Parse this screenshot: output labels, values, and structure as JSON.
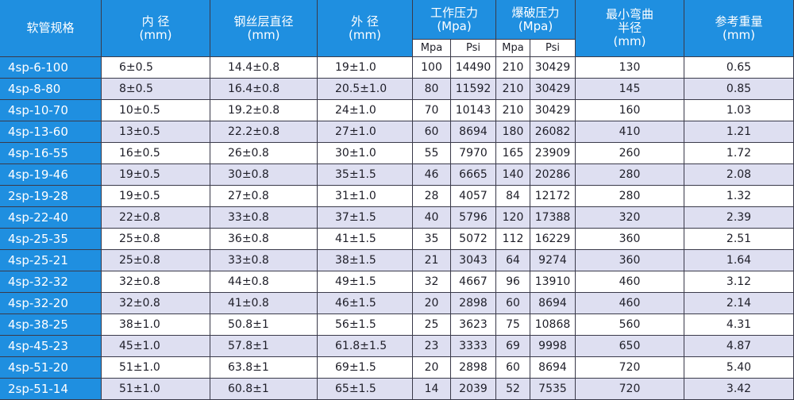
{
  "table": {
    "headers": [
      [
        "软管规格"
      ],
      [
        "内 径",
        "(mm)"
      ],
      [
        "钢丝层直径",
        "(mm)"
      ],
      [
        "外 径",
        "(mm)"
      ],
      [
        "工作压力",
        "(Mpa)"
      ],
      [
        "爆破压力",
        "(Mpa)"
      ],
      [
        "最小弯曲",
        "半径",
        "(mm)"
      ],
      [
        "参考重量",
        "(mm)"
      ]
    ],
    "subheaders": [
      "Mpa",
      "Psi",
      "Mpa",
      "Psi"
    ],
    "rows": [
      [
        "4sp-6-100",
        "6±0.5",
        "14.4±0.8",
        "19±1.0",
        "100",
        "14490",
        "210",
        "30429",
        "130",
        "0.65"
      ],
      [
        "4sp-8-80",
        "8±0.5",
        "16.4±0.8",
        "20.5±1.0",
        "80",
        "11592",
        "210",
        "30429",
        "145",
        "0.85"
      ],
      [
        "4sp-10-70",
        "10±0.5",
        "19.2±0.8",
        "24±1.0",
        "70",
        "10143",
        "210",
        "30429",
        "160",
        "1.03"
      ],
      [
        "4sp-13-60",
        "13±0.5",
        "22.2±0.8",
        "27±1.0",
        "60",
        "8694",
        "180",
        "26082",
        "410",
        "1.21"
      ],
      [
        "4sp-16-55",
        "16±0.5",
        "26±0.8",
        "30±1.0",
        "55",
        "7970",
        "165",
        "23909",
        "260",
        "1.72"
      ],
      [
        "4sp-19-46",
        "19±0.5",
        "30±0.8",
        "35±1.5",
        "46",
        "6665",
        "140",
        "20286",
        "280",
        "2.08"
      ],
      [
        "2sp-19-28",
        "19±0.5",
        "27±0.8",
        "31±1.0",
        "28",
        "4057",
        "84",
        "12172",
        "280",
        "1.32"
      ],
      [
        "4sp-22-40",
        "22±0.8",
        "33±0.8",
        "37±1.5",
        "40",
        "5796",
        "120",
        "17388",
        "320",
        "2.39"
      ],
      [
        "4sp-25-35",
        "25±0.8",
        "36±0.8",
        "41±1.5",
        "35",
        "5072",
        "112",
        "16229",
        "360",
        "2.51"
      ],
      [
        "4sp-25-21",
        "25±0.8",
        "33±0.8",
        "38±1.5",
        "21",
        "3043",
        "64",
        "9274",
        "360",
        "1.64"
      ],
      [
        "4sp-32-32",
        "32±0.8",
        "44±0.8",
        "49±1.5",
        "32",
        "4667",
        "96",
        "13910",
        "460",
        "3.12"
      ],
      [
        "4sp-32-20",
        "32±0.8",
        "41±0.8",
        "46±1.5",
        "20",
        "2898",
        "60",
        "8694",
        "460",
        "2.14"
      ],
      [
        "4sp-38-25",
        "38±1.0",
        "50.8±1",
        "56±1.5",
        "25",
        "3623",
        "75",
        "10868",
        "560",
        "4.31"
      ],
      [
        "4sp-45-23",
        "45±1.0",
        "57.8±1",
        "61.8±1.5",
        "23",
        "3333",
        "69",
        "9998",
        "650",
        "4.87"
      ],
      [
        "4sp-51-20",
        "51±1.0",
        "63.8±1",
        "69±1.5",
        "20",
        "2898",
        "60",
        "8694",
        "720",
        "5.40"
      ],
      [
        "2sp-51-14",
        "51±1.0",
        "60.8±1",
        "65±1.5",
        "14",
        "2039",
        "52",
        "7535",
        "720",
        "3.42"
      ]
    ]
  }
}
